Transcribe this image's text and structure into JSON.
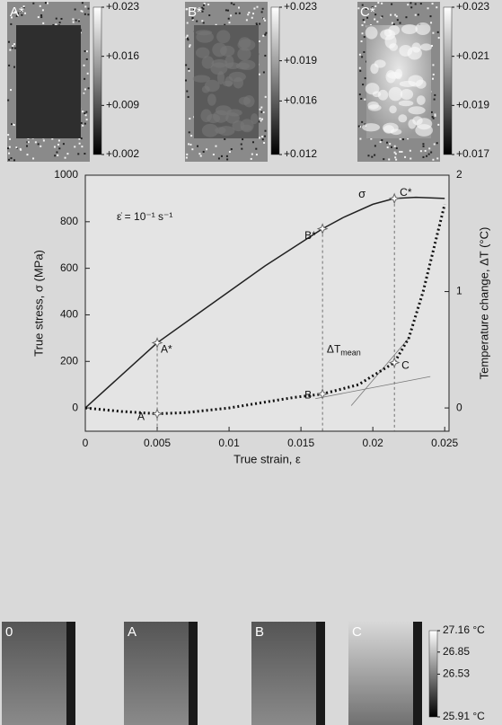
{
  "strain_maps": [
    {
      "label": "A*",
      "colorbar": {
        "lim": [
          0.002,
          0.023
        ],
        "ticks": [
          {
            "value": 0.023,
            "label": "+0.023"
          },
          {
            "value": 0.016,
            "label": "+0.016"
          },
          {
            "value": 0.009,
            "label": "+0.009"
          },
          {
            "value": 0.002,
            "label": "+0.002"
          }
        ]
      }
    },
    {
      "label": "B*",
      "colorbar": {
        "lim": [
          0.012,
          0.023
        ],
        "ticks": [
          {
            "value": 0.023,
            "label": "+0.023"
          },
          {
            "value": 0.019,
            "label": "+0.019"
          },
          {
            "value": 0.016,
            "label": "+0.016"
          },
          {
            "value": 0.012,
            "label": "+0.012"
          }
        ]
      }
    },
    {
      "label": "C*",
      "colorbar": {
        "lim": [
          0.017,
          0.023
        ],
        "ticks": [
          {
            "value": 0.023,
            "label": "+0.023"
          },
          {
            "value": 0.021,
            "label": "+0.021"
          },
          {
            "value": 0.019,
            "label": "+0.019"
          },
          {
            "value": 0.017,
            "label": "+0.017"
          }
        ]
      }
    }
  ],
  "chart_data": {
    "type": "line",
    "xlabel": "True strain, ε",
    "ylabel": "True stress, σ (MPa)",
    "y2label": "Temperature change, ΔT (°C)",
    "xlim": [
      0,
      0.0253
    ],
    "xticks": [
      0,
      0.005,
      0.01,
      0.015,
      0.02,
      0.025
    ],
    "ylim": [
      -100,
      1000
    ],
    "yticks": [
      0,
      200,
      400,
      600,
      800,
      1000
    ],
    "y2lim": [
      -0.2,
      2
    ],
    "y2ticks": [
      0,
      1,
      2
    ],
    "rate_annotation": "ε̇ = 10⁻¹ s⁻¹",
    "series": [
      {
        "name": "σ",
        "color": "#222222",
        "style": "solid",
        "x": [
          0,
          0.0025,
          0.005,
          0.0075,
          0.01,
          0.0125,
          0.015,
          0.0165,
          0.018,
          0.02,
          0.0215,
          0.023,
          0.025
        ],
        "values": [
          0,
          140,
          280,
          390,
          500,
          610,
          710,
          770,
          820,
          875,
          900,
          905,
          900
        ]
      },
      {
        "name": "ΔT",
        "name_sub": "mean",
        "color": "#111111",
        "style": "dotted",
        "axis": "y2",
        "x": [
          0,
          0.0025,
          0.005,
          0.007,
          0.01,
          0.0125,
          0.0145,
          0.0165,
          0.019,
          0.0215,
          0.0225,
          0.0235,
          0.025
        ],
        "values": [
          0,
          -0.03,
          -0.05,
          -0.04,
          0,
          0.05,
          0.09,
          0.12,
          0.2,
          0.39,
          0.6,
          1.0,
          1.75
        ]
      }
    ],
    "points": [
      {
        "label": "A",
        "x": 0.005,
        "value": -0.05,
        "axis": "y2"
      },
      {
        "label": "A*",
        "x": 0.005,
        "value": 280
      },
      {
        "label": "B",
        "x": 0.0165,
        "value": 0.12,
        "axis": "y2"
      },
      {
        "label": "B*",
        "x": 0.0165,
        "value": 770
      },
      {
        "label": "C",
        "x": 0.0215,
        "value": 0.39,
        "axis": "y2"
      },
      {
        "label": "C*",
        "x": 0.0215,
        "value": 900
      }
    ]
  },
  "thermal_maps": {
    "labels": [
      "0",
      "A",
      "B",
      "C"
    ],
    "colorbar": {
      "lim": [
        25.91,
        27.16
      ],
      "ticks": [
        {
          "value": 27.16,
          "label": "27.16 °C"
        },
        26.85,
        26.53,
        {
          "value": 25.91,
          "label": "25.91 °C"
        }
      ]
    }
  }
}
